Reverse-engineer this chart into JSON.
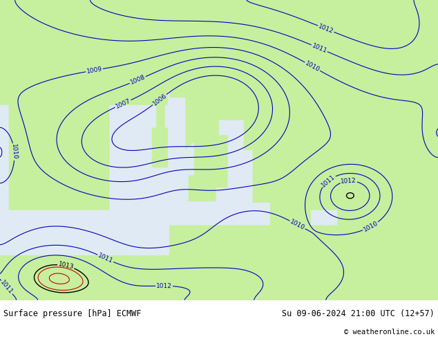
{
  "title_left": "Surface pressure [hPa] ECMWF",
  "title_right": "Su 09-06-2024 21:00 UTC (12+57)",
  "copyright": "© weatheronline.co.uk",
  "land_color": [
    0.78,
    0.94,
    0.62,
    1.0
  ],
  "sea_color": [
    0.88,
    0.92,
    0.96,
    1.0
  ],
  "contour_color_blue": "#0000bb",
  "contour_color_black": "#000000",
  "contour_color_red": "#cc0000",
  "contour_color_orange": "#ff8800",
  "footer_bg": "#c8c8c8",
  "figsize": [
    6.34,
    4.9
  ],
  "dpi": 100
}
